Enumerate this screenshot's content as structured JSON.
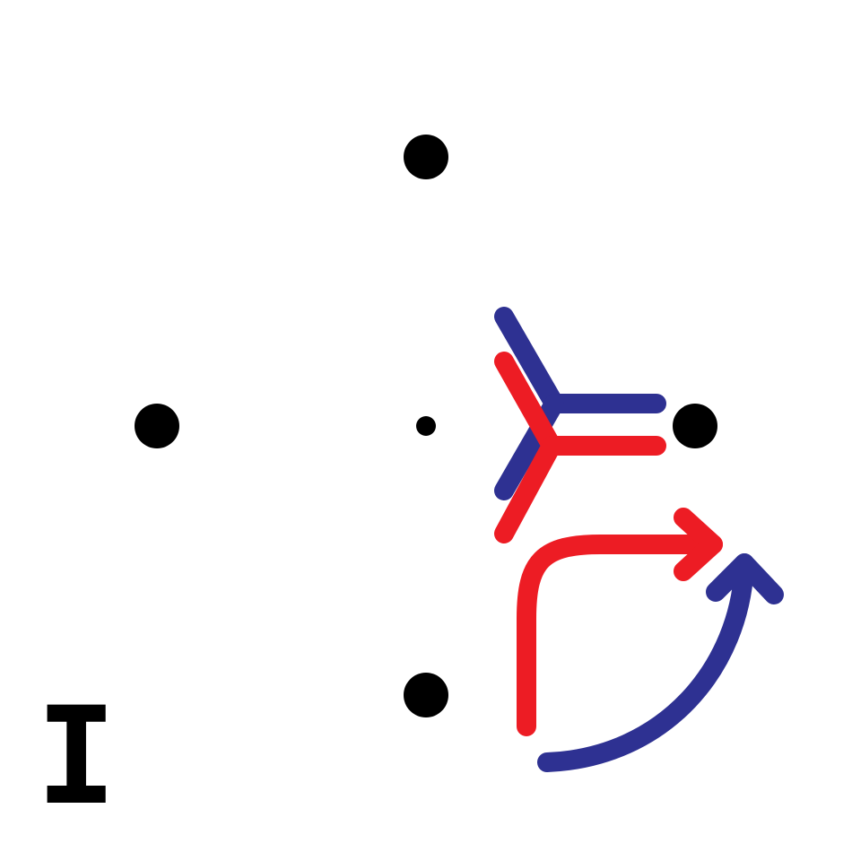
{
  "panel": {
    "label": "I"
  },
  "colors": {
    "background": "#ffffff",
    "dot": "#000000",
    "blue": "#2e3192",
    "red": "#ed1c24"
  },
  "icons": {
    "blue_trivalent": "trivalent-vertex-icon",
    "red_trivalent": "trivalent-vertex-icon",
    "red_arrow": "curved-arrow-icon",
    "blue_arrow": "curved-arrow-icon"
  }
}
